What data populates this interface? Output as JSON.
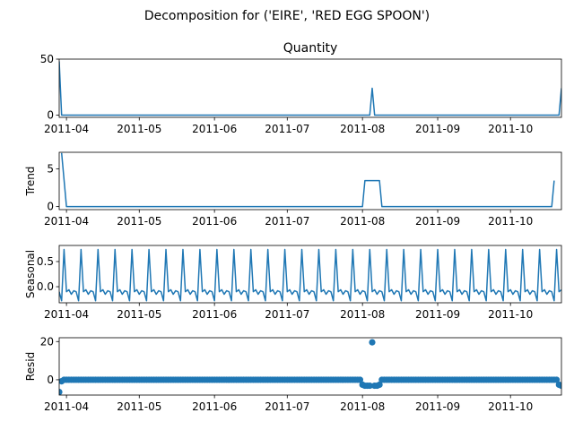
{
  "figure": {
    "suptitle": "Decomposition for ('EIRE', 'RED  EGG  SPOON')"
  },
  "chart_data": [
    {
      "type": "line",
      "title": "Quantity",
      "ylabel": "",
      "x_range": [
        "2011-03-29",
        "2011-10-22"
      ],
      "ylim": [
        -2,
        50
      ],
      "yticks": [
        0,
        50
      ],
      "xticks": [
        "2011-04",
        "2011-05",
        "2011-06",
        "2011-07",
        "2011-08",
        "2011-09",
        "2011-10"
      ],
      "color": "#1f77b4",
      "points": [
        [
          "2011-03-29",
          48
        ],
        [
          "2011-03-30",
          0
        ],
        [
          "2011-08-04",
          0
        ],
        [
          "2011-08-05",
          24
        ],
        [
          "2011-08-06",
          0
        ],
        [
          "2011-10-21",
          0
        ],
        [
          "2011-10-22",
          24
        ]
      ]
    },
    {
      "type": "line",
      "title": "",
      "ylabel": "Trend",
      "x_range": [
        "2011-03-29",
        "2011-10-22"
      ],
      "ylim": [
        -0.4,
        7.2
      ],
      "yticks": [
        0,
        5
      ],
      "xticks": [
        "2011-04",
        "2011-05",
        "2011-06",
        "2011-07",
        "2011-08",
        "2011-09",
        "2011-10"
      ],
      "color": "#1f77b4",
      "points": [
        [
          "2011-03-30",
          7.1
        ],
        [
          "2011-04-01",
          0
        ],
        [
          "2011-08-01",
          0
        ],
        [
          "2011-08-02",
          3.45
        ],
        [
          "2011-08-08",
          3.45
        ],
        [
          "2011-08-09",
          0
        ],
        [
          "2011-10-18",
          0
        ],
        [
          "2011-10-19",
          3.45
        ]
      ]
    },
    {
      "type": "line",
      "title": "",
      "ylabel": "Seasonal",
      "x_range": [
        "2011-03-29",
        "2011-10-22"
      ],
      "ylim": [
        -0.32,
        0.82
      ],
      "yticks": [
        0.0,
        0.5
      ],
      "xticks": [
        "2011-04",
        "2011-05",
        "2011-06",
        "2011-07",
        "2011-08",
        "2011-09",
        "2011-10"
      ],
      "color": "#1f77b4",
      "period_start": "2011-03-29",
      "weekly_pattern": [
        -0.1,
        -0.28,
        0.74,
        -0.1,
        -0.06,
        -0.15,
        -0.08
      ]
    },
    {
      "type": "scatter",
      "title": "",
      "ylabel": "Resid",
      "x_range": [
        "2011-03-29",
        "2011-10-22"
      ],
      "ylim": [
        -8,
        22
      ],
      "yticks": [
        0,
        20
      ],
      "xticks": [
        "2011-04",
        "2011-05",
        "2011-06",
        "2011-07",
        "2011-08",
        "2011-09",
        "2011-10"
      ],
      "color": "#1f77b4",
      "series_start": "2011-03-29",
      "series_end": "2011-10-22",
      "baseline_value": 0,
      "points": [
        [
          "2011-03-29",
          -6.4
        ],
        [
          "2011-03-30",
          -0.8
        ],
        [
          "2011-08-01",
          -2.6
        ],
        [
          "2011-08-02",
          -3.1
        ],
        [
          "2011-08-03",
          -3.1
        ],
        [
          "2011-08-04",
          -3.1
        ],
        [
          "2011-08-05",
          19.6
        ],
        [
          "2011-08-06",
          -3.1
        ],
        [
          "2011-08-07",
          -3.1
        ],
        [
          "2011-08-08",
          -2.6
        ],
        [
          "2011-10-21",
          -2.6
        ],
        [
          "2011-10-22",
          -3.1
        ]
      ]
    }
  ]
}
